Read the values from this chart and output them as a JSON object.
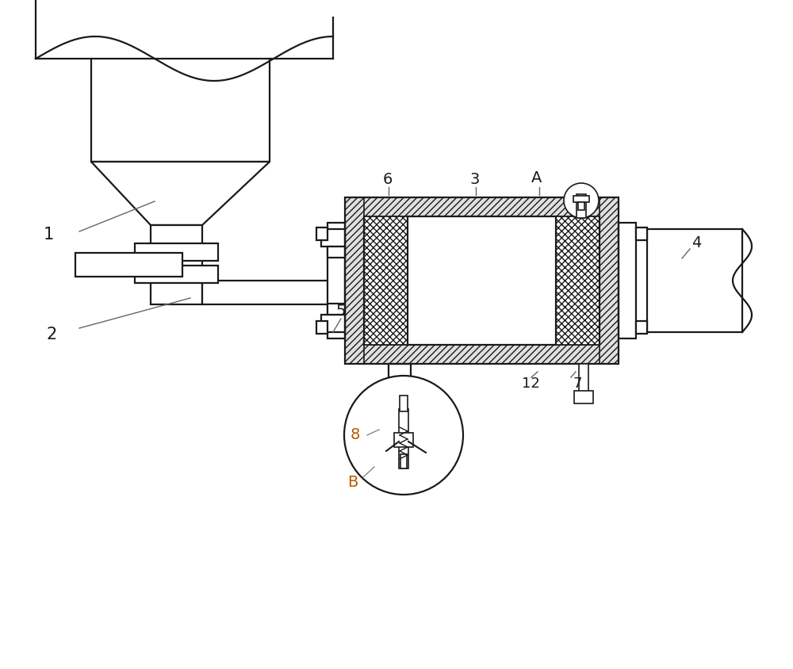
{
  "bg_color": "#ffffff",
  "line_color": "#1a1a1a",
  "label_color_black": "#1a1a1a",
  "label_color_orange": "#b85c00",
  "figsize": [
    10.0,
    8.44
  ],
  "dpi": 100,
  "lw": 1.6
}
